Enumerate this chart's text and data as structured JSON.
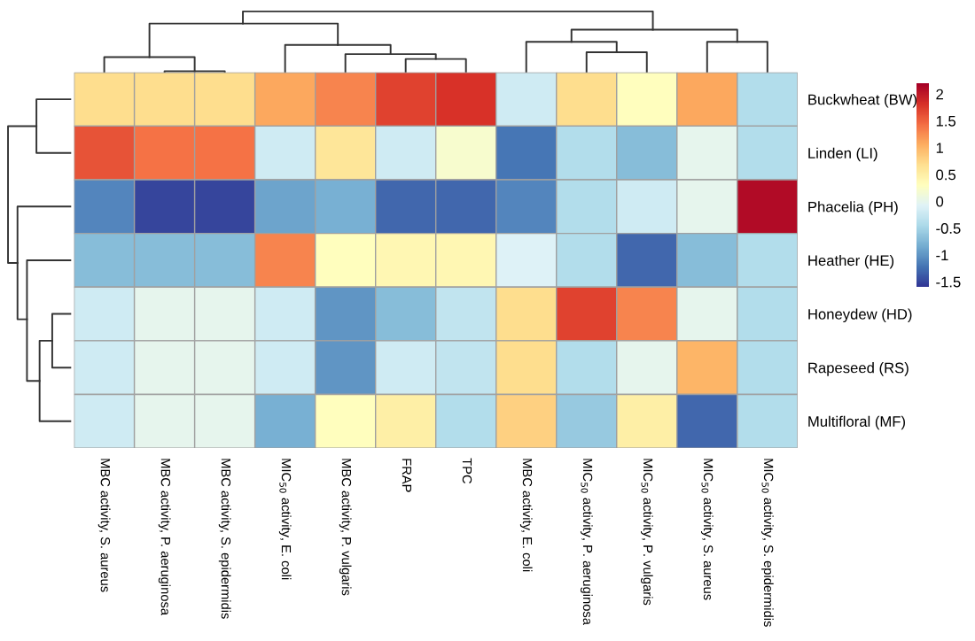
{
  "chart_data": {
    "type": "heatmap",
    "categories": [
      "MBC activity, S. aureus",
      "MBC activity, P. aeruginosa",
      "MBC activity, S. epidermidis",
      "MIC$_{50}$ activity, E. coli",
      "MBC activity, P. vulgaris",
      "FRAP",
      "TPC",
      "MBC activity, E. coli",
      "MIC$_{50}$ activity, P. aeruginosa",
      "MIC$_{50}$ activity, P. vulgaris",
      "MIC$_{50}$ activity, S. aureus",
      "MIC$_{50}$ activity, S. epidermidis"
    ],
    "y_categories": [
      "Buckwheat (BW)",
      "Linden (LI)",
      "Phacelia (PH)",
      "Heather (HE)",
      "Honeydew (HD)",
      "Rapeseed (RS)",
      "Multifloral (MF)"
    ],
    "cells": [
      [
        0.7,
        0.7,
        0.7,
        1.1,
        1.3,
        1.7,
        1.8,
        -0.2,
        0.7,
        0.3,
        1.1,
        -0.4
      ],
      [
        1.6,
        1.4,
        1.4,
        -0.2,
        0.6,
        -0.2,
        0.2,
        -1.2,
        -0.4,
        -0.7,
        0.0,
        -0.4
      ],
      [
        -1.1,
        -1.5,
        -1.5,
        -0.9,
        -0.8,
        -1.3,
        -1.3,
        -1.1,
        -0.4,
        -0.2,
        0.0,
        2.1
      ],
      [
        -0.7,
        -0.7,
        -0.7,
        1.3,
        0.3,
        0.4,
        0.4,
        -0.1,
        -0.4,
        -1.3,
        -0.7,
        -0.4
      ],
      [
        -0.2,
        0.0,
        0.0,
        -0.2,
        -1.0,
        -0.7,
        -0.3,
        0.7,
        1.7,
        1.3,
        0.0,
        -0.4
      ],
      [
        -0.2,
        0.0,
        0.0,
        -0.2,
        -1.0,
        -0.2,
        -0.3,
        0.7,
        -0.4,
        0.0,
        1.0,
        -0.4
      ],
      [
        -0.2,
        0.0,
        0.0,
        -0.8,
        0.3,
        0.5,
        -0.4,
        0.8,
        -0.6,
        0.5,
        -1.3,
        -0.4
      ]
    ],
    "clim": [
      -1.6,
      2.2
    ],
    "cticks": [
      -1.5,
      -1,
      -0.5,
      0,
      0.5,
      1,
      1.5,
      2
    ]
  }
}
